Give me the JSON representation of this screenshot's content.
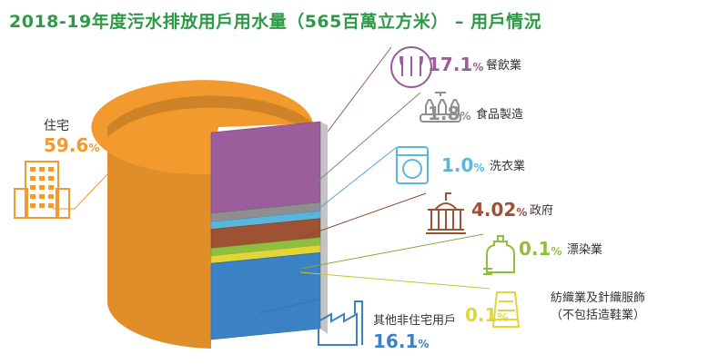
{
  "title": "2018-19年度污水排放用戶用水量（565百萬立方米） – 用戶情況",
  "chart_data": {
    "type": "pie",
    "title": "2018-19年度污水排放用戶用水量（565百萬立方米） – 用戶情況",
    "unit": "%",
    "slices": [
      {
        "name": "住宅",
        "value": 59.6,
        "value_text": "59.6",
        "color": "#f29a2e",
        "icon": "residential-building-icon"
      },
      {
        "name": "餐飲業",
        "value": 17.1,
        "value_text": "17.1",
        "color": "#9b5d9c",
        "icon": "fork-knife-spoon-icon"
      },
      {
        "name": "食品製造",
        "value": 1.8,
        "value_text": "1.8",
        "color": "#8f8f8f",
        "icon": "bottle-factory-icon"
      },
      {
        "name": "洗衣業",
        "value": 1.0,
        "value_text": "1.0",
        "color": "#5bb6de",
        "icon": "washing-machine-icon"
      },
      {
        "name": "政府",
        "value": 4.02,
        "value_text": "4.02",
        "color": "#9e5133",
        "icon": "government-building-icon"
      },
      {
        "name": "漂染業",
        "value": 0.1,
        "value_text": "0.1",
        "color": "#8fbf3e",
        "icon": "detergent-icon"
      },
      {
        "name": "紡織業及針織服飾\n（不包括造鞋業）",
        "value": 0.1,
        "value_text": "0.1",
        "color": "#e1d637",
        "icon": "thread-spool-icon"
      },
      {
        "name": "其他非住宅用戶",
        "value": 16.1,
        "value_text": "16.1",
        "color": "#3b82c4",
        "icon": "factory-icon"
      }
    ]
  }
}
